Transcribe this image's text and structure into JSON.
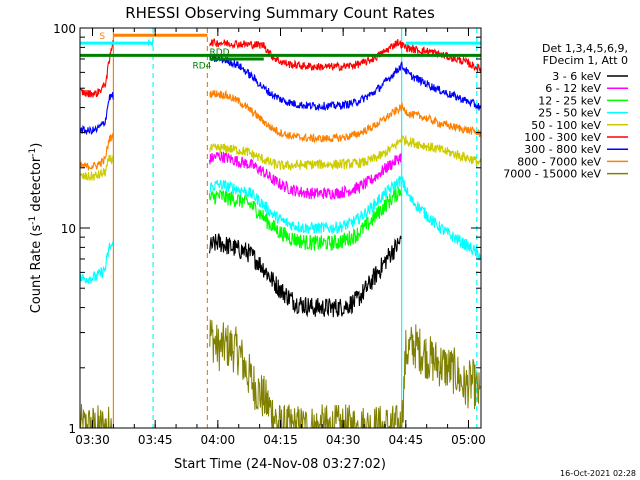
{
  "chart_data": {
    "type": "line",
    "title": "RHESSI Observing Summary Count Rates",
    "xlabel": "Start Time (24-Nov-08 03:27:02)",
    "ylabel": "Count Rate (s⁻¹ detector⁻¹)",
    "ylabel_main": "Count Rate (s",
    "ylabel_sup1": "-1",
    "ylabel_mid": " detector",
    "ylabel_sup2": "-1",
    "ylabel_end": ")",
    "yscale": "log",
    "ylim": [
      1,
      100
    ],
    "xlim_minutes": [
      0,
      96
    ],
    "x_ticks": [
      {
        "label": "03:30",
        "minutes": 3
      },
      {
        "label": "03:45",
        "minutes": 18
      },
      {
        "label": "04:00",
        "minutes": 33
      },
      {
        "label": "04:15",
        "minutes": 48
      },
      {
        "label": "04:30",
        "minutes": 63
      },
      {
        "label": "04:45",
        "minutes": 78
      },
      {
        "label": "05:00",
        "minutes": 93
      }
    ],
    "y_ticks": [
      {
        "label": "1",
        "value": 1
      },
      {
        "label": "10",
        "value": 10
      },
      {
        "label": "100",
        "value": 100
      }
    ],
    "legend": {
      "header": [
        "Det 1,3,4,5,6,9,",
        "FDecim 1, Att 0"
      ],
      "position": "top-right",
      "entries": [
        {
          "label": "3 - 6 keV",
          "color": "#000000"
        },
        {
          "label": "6 - 12 keV",
          "color": "#ff00ff"
        },
        {
          "label": "12 - 25 keV",
          "color": "#00ff00"
        },
        {
          "label": "25 - 50 keV",
          "color": "#00ffff"
        },
        {
          "label": "50 - 100 keV",
          "color": "#cccc00"
        },
        {
          "label": "100 - 300 keV",
          "color": "#ff0000"
        },
        {
          "label": "300 - 800 keV",
          "color": "#0000ff"
        },
        {
          "label": "800 - 7000 keV",
          "color": "#ff8000"
        },
        {
          "label": "7000 - 15000 keV",
          "color": "#808000"
        }
      ]
    },
    "flag_bars": [
      {
        "label": "S",
        "color": "#ff8000",
        "start": 8,
        "end": 30.5,
        "value": 92
      },
      {
        "label": "N",
        "color": "#00ffff",
        "start": 0,
        "end": 17.5,
        "value": 84
      },
      {
        "label": "N",
        "color": "#00ffff",
        "start": 78,
        "end": 96,
        "value": 84
      },
      {
        "label": "RD4",
        "color": "#008000",
        "start": 0,
        "end": 96,
        "value": 73
      },
      {
        "label": "RDD",
        "color": "#008000",
        "start": 31,
        "end": 44,
        "value": 70
      }
    ],
    "event_lines": [
      {
        "minutes": 8,
        "color": "#ff8000",
        "style": "solid"
      },
      {
        "minutes": 17.5,
        "color": "#00ffff",
        "style": "dashed"
      },
      {
        "minutes": 30.5,
        "color": "#ff8000",
        "style": "dashed"
      },
      {
        "minutes": 77,
        "color": "#00ffff",
        "style": "solid"
      },
      {
        "minutes": 95,
        "color": "#00ffff",
        "style": "dashed"
      }
    ],
    "data_gap_minutes": [
      8,
      31
    ],
    "series": [
      {
        "name": "3 - 6 keV",
        "color": "#000000",
        "x": [
          31,
          33,
          35,
          38,
          40,
          42,
          44,
          46,
          48,
          50,
          52,
          54,
          56,
          58,
          60,
          62,
          64,
          66,
          68,
          70,
          72,
          74,
          76,
          77
        ],
        "y": [
          8.0,
          8.5,
          8.2,
          7.8,
          7.6,
          7.0,
          6.3,
          5.5,
          4.9,
          4.5,
          4.2,
          4.1,
          4.0,
          4.0,
          4.0,
          4.0,
          4.1,
          4.3,
          4.8,
          5.5,
          6.3,
          7.3,
          8.2,
          8.8
        ],
        "noise": 0.05
      },
      {
        "name": "6 - 12 keV",
        "color": "#ff00ff",
        "x": [
          31,
          33,
          35,
          38,
          40,
          42,
          44,
          46,
          48,
          50,
          52,
          54,
          56,
          58,
          60,
          62,
          64,
          66,
          68,
          70,
          72,
          74,
          76,
          77
        ],
        "y": [
          22,
          23,
          22.5,
          21.5,
          21,
          20.2,
          19,
          17.5,
          16.5,
          15.8,
          15.3,
          15.0,
          14.9,
          14.9,
          14.9,
          15.0,
          15.3,
          15.8,
          16.5,
          17.5,
          19,
          20.5,
          22,
          23
        ],
        "noise": 0.03
      },
      {
        "name": "12 - 25 keV",
        "color": "#00ff00",
        "x": [
          31,
          33,
          35,
          38,
          40,
          42,
          44,
          46,
          48,
          50,
          52,
          54,
          56,
          58,
          60,
          62,
          64,
          66,
          68,
          70,
          72,
          74,
          76,
          77
        ],
        "y": [
          14,
          14.5,
          14.2,
          13.8,
          13.4,
          12.5,
          11.3,
          10.2,
          9.5,
          9.0,
          8.7,
          8.5,
          8.4,
          8.4,
          8.4,
          8.5,
          8.8,
          9.2,
          10,
          11,
          12.3,
          13.6,
          15,
          15.8
        ],
        "noise": 0.04
      },
      {
        "name": "25 - 50 keV",
        "color": "#00ffff",
        "x": [
          0,
          2,
          4,
          6,
          7,
          31,
          33,
          35,
          38,
          40,
          42,
          44,
          46,
          48,
          50,
          52,
          54,
          56,
          58,
          60,
          62,
          64,
          66,
          68,
          70,
          72,
          74,
          76,
          77,
          79,
          82,
          85,
          88,
          91,
          94,
          96
        ],
        "y": [
          5.6,
          5.6,
          5.7,
          6.2,
          8.0,
          16,
          16.5,
          16.2,
          15.6,
          15.2,
          14.3,
          13.0,
          11.8,
          11.0,
          10.5,
          10.2,
          10.0,
          10.0,
          10.0,
          10.0,
          10.1,
          10.4,
          10.9,
          11.7,
          12.8,
          14.2,
          15.5,
          16.8,
          17.5,
          14,
          12.2,
          10.5,
          9.4,
          8.6,
          7.8,
          7.2
        ],
        "noise": 0.03
      },
      {
        "name": "50 - 100 keV",
        "color": "#cccc00",
        "x": [
          0,
          2,
          4,
          6,
          7,
          33,
          35,
          38,
          40,
          42,
          44,
          46,
          48,
          50,
          52,
          54,
          56,
          58,
          60,
          62,
          64,
          66,
          68,
          70,
          72,
          74,
          76,
          77,
          79,
          82,
          85,
          88,
          91,
          94,
          96
        ],
        "y": [
          18,
          18,
          18.2,
          19,
          22,
          25,
          25,
          24.5,
          24,
          23,
          22,
          21,
          20.5,
          20.5,
          20.6,
          20.7,
          20.8,
          20.8,
          20.8,
          20.8,
          20.9,
          21,
          21.3,
          22,
          23,
          24.5,
          26.5,
          28,
          27,
          26,
          25,
          24,
          23,
          22,
          21
        ],
        "noise": 0.025
      },
      {
        "name": "100 - 300 keV",
        "color": "#ff0000",
        "x": [
          0,
          2,
          4,
          6,
          7,
          8,
          44,
          46,
          48,
          50,
          52,
          54,
          56,
          58,
          60,
          62,
          64,
          66,
          68,
          70,
          72,
          74,
          76,
          78,
          80,
          84,
          88,
          92,
          96
        ],
        "y": [
          48,
          47,
          47,
          52,
          68,
          90,
          82,
          72,
          68,
          66,
          65,
          64.5,
          64,
          64,
          64,
          64,
          64.5,
          65.5,
          67,
          70,
          74,
          79,
          85,
          80,
          78,
          76,
          72,
          68,
          62
        ],
        "noise": 0.02
      },
      {
        "name": "300 - 800 keV",
        "color": "#0000ff",
        "x": [
          0,
          2,
          4,
          6,
          7,
          31,
          33,
          35,
          38,
          40,
          42,
          44,
          46,
          48,
          50,
          52,
          54,
          56,
          58,
          60,
          62,
          64,
          66,
          68,
          70,
          72,
          74,
          76,
          77,
          79,
          82,
          85,
          88,
          91,
          94,
          96
        ],
        "y": [
          31,
          30.5,
          31,
          34,
          45,
          70,
          70,
          69,
          65,
          60,
          55,
          50,
          46.5,
          44,
          42.5,
          41.5,
          41,
          40.8,
          40.8,
          40.8,
          41,
          41.5,
          42.5,
          44.5,
          47,
          51,
          56,
          62,
          65,
          58,
          54,
          50,
          47,
          44.5,
          42,
          40
        ],
        "noise": 0.02
      },
      {
        "name": "800 - 7000 keV",
        "color": "#ff8000",
        "x": [
          0,
          2,
          4,
          6,
          7,
          31,
          33,
          35,
          38,
          40,
          42,
          44,
          46,
          48,
          50,
          52,
          54,
          56,
          58,
          60,
          62,
          64,
          66,
          68,
          70,
          72,
          74,
          76,
          77,
          79,
          82,
          85,
          88,
          91,
          94,
          96
        ],
        "y": [
          20.5,
          20.3,
          20.5,
          22,
          28,
          47,
          47,
          46,
          43,
          40,
          37,
          34,
          31.5,
          30,
          29,
          28.5,
          28.2,
          28,
          28,
          28,
          28.2,
          28.6,
          29.3,
          30.5,
          32,
          34,
          36.5,
          39,
          40,
          37,
          36,
          34,
          32.5,
          31.5,
          30.5,
          29.5
        ],
        "noise": 0.02
      },
      {
        "name": "7000 - 15000 keV",
        "color": "#808000",
        "x": [
          0,
          4,
          7,
          31,
          33,
          35,
          38,
          40,
          42,
          44,
          46,
          48,
          77,
          78,
          80,
          82,
          84,
          86,
          88,
          90,
          92,
          94,
          96
        ],
        "y": [
          1.0,
          1.0,
          1.0,
          3.0,
          2.5,
          2.6,
          2.4,
          1.9,
          1.6,
          1.4,
          1.2,
          1.0,
          1.0,
          2.4,
          2.6,
          2.4,
          2.2,
          2.1,
          2.0,
          1.9,
          1.6,
          1.7,
          1.4
        ],
        "noise": 0.12
      }
    ]
  },
  "footer": {
    "timestamp": "16-Oct-2021 02:28"
  }
}
